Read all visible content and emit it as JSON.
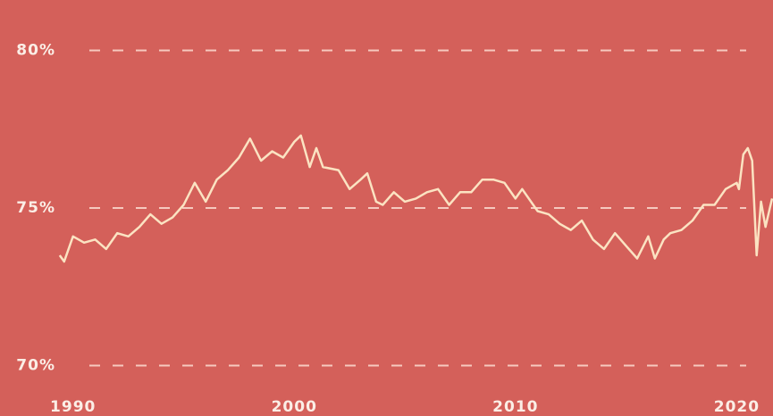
{
  "chart_data": {
    "type": "line",
    "background": "#d4605a",
    "color": "#fbe3c2",
    "grid": true,
    "x": [
      1989.4,
      1989.6,
      1990.0,
      1990.5,
      1991.0,
      1991.5,
      1992.0,
      1992.5,
      1993.0,
      1993.5,
      1994.0,
      1994.5,
      1995.0,
      1995.5,
      1996.0,
      1996.5,
      1997.0,
      1997.5,
      1998.0,
      1998.5,
      1999.0,
      1999.5,
      2000.0,
      2000.3,
      2000.7,
      2001.0,
      2001.3,
      2002.0,
      2002.5,
      2003.0,
      2003.3,
      2003.7,
      2004.0,
      2004.5,
      2005.0,
      2005.5,
      2006.0,
      2006.5,
      2007.0,
      2007.5,
      2008.0,
      2008.5,
      2009.0,
      2009.5,
      2010.0,
      2010.3,
      2011.0,
      2011.5,
      2012.0,
      2012.5,
      2013.0,
      2013.5,
      2014.0,
      2014.5,
      2015.0,
      2015.5,
      2016.0,
      2016.3,
      2016.7,
      2017.0,
      2017.5,
      2018.0,
      2018.5,
      2019.0,
      2019.5,
      2020.0,
      2020.1,
      2020.3,
      2020.5,
      2020.7,
      2020.9,
      2021.1,
      2021.3,
      2021.5,
      2021.6
    ],
    "values": [
      73.5,
      73.3,
      74.1,
      73.9,
      74.0,
      73.7,
      74.2,
      74.1,
      74.4,
      74.8,
      74.5,
      74.7,
      75.1,
      75.8,
      75.2,
      75.9,
      76.2,
      76.6,
      77.2,
      76.5,
      76.8,
      76.6,
      77.1,
      77.3,
      76.3,
      76.9,
      76.3,
      76.2,
      75.6,
      75.9,
      76.1,
      75.2,
      75.1,
      75.5,
      75.2,
      75.3,
      75.5,
      75.6,
      75.1,
      75.5,
      75.5,
      75.9,
      75.9,
      75.8,
      75.3,
      75.6,
      74.9,
      74.8,
      74.5,
      74.3,
      74.6,
      74.0,
      73.7,
      74.2,
      73.8,
      73.4,
      74.1,
      73.4,
      74.0,
      74.2,
      74.3,
      74.6,
      75.1,
      75.1,
      75.6,
      75.8,
      75.6,
      76.7,
      76.9,
      76.5,
      73.5,
      75.2,
      74.4,
      75.0,
      75.3
    ],
    "xlim": [
      1986.7,
      2021.64
    ],
    "xticks": [
      1990,
      2000,
      2010,
      2020
    ],
    "ylim": [
      68.4,
      81.6
    ],
    "yticks": [
      {
        "value": 70,
        "label": "70%"
      },
      {
        "value": 75,
        "label": "75%"
      },
      {
        "value": 80,
        "label": "80%"
      }
    ]
  }
}
